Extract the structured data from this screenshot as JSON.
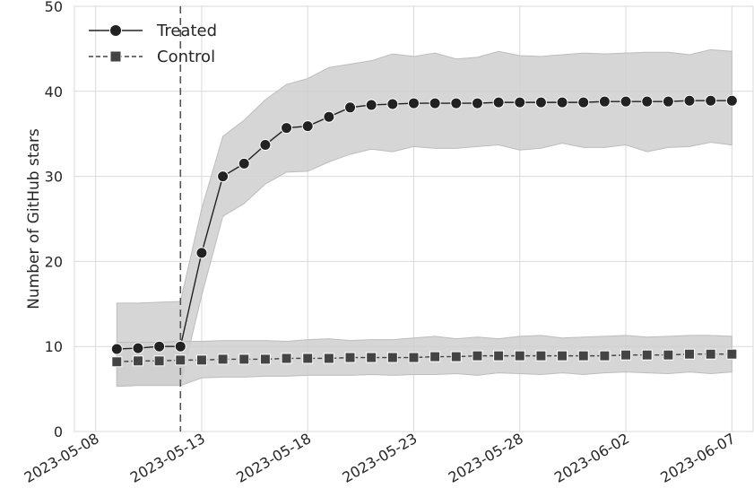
{
  "chart_data": {
    "type": "line",
    "ylabel": "Number of GitHub stars",
    "ylim": [
      0,
      50
    ],
    "yticks": [
      0,
      10,
      20,
      30,
      40,
      50
    ],
    "xlim": [
      "2023-05-07",
      "2023-06-08"
    ],
    "xticks": [
      "2023-05-08",
      "2023-05-13",
      "2023-05-18",
      "2023-05-23",
      "2023-05-28",
      "2023-06-02",
      "2023-06-07"
    ],
    "treatment_date": "2023-05-12",
    "grid": true,
    "legend_position": "top-left",
    "x": [
      "2023-05-09",
      "2023-05-10",
      "2023-05-11",
      "2023-05-12",
      "2023-05-13",
      "2023-05-14",
      "2023-05-15",
      "2023-05-16",
      "2023-05-17",
      "2023-05-18",
      "2023-05-19",
      "2023-05-20",
      "2023-05-21",
      "2023-05-22",
      "2023-05-23",
      "2023-05-24",
      "2023-05-25",
      "2023-05-26",
      "2023-05-27",
      "2023-05-28",
      "2023-05-29",
      "2023-05-30",
      "2023-05-31",
      "2023-06-01",
      "2023-06-02",
      "2023-06-03",
      "2023-06-04",
      "2023-06-05",
      "2023-06-06",
      "2023-06-07"
    ],
    "series": [
      {
        "name": "Treated",
        "marker": "circle",
        "line_style": "solid",
        "color": "#222222",
        "values": [
          9.7,
          9.8,
          10.0,
          10.0,
          21.0,
          30.0,
          31.5,
          33.7,
          35.7,
          35.9,
          37.0,
          38.1,
          38.4,
          38.5,
          38.6,
          38.6,
          38.6,
          38.6,
          38.7,
          38.7,
          38.7,
          38.7,
          38.7,
          38.8,
          38.8,
          38.8,
          38.8,
          38.9,
          38.9,
          38.9
        ],
        "ci_lower": [
          5.4,
          5.5,
          5.5,
          5.5,
          16.0,
          25.3,
          26.8,
          29.1,
          30.5,
          30.6,
          31.7,
          32.6,
          33.2,
          32.9,
          33.5,
          33.3,
          33.3,
          33.5,
          33.7,
          33.1,
          33.3,
          33.9,
          33.4,
          33.4,
          33.7,
          32.9,
          33.4,
          33.5,
          34.0,
          33.7
        ],
        "ci_upper": [
          15.1,
          15.1,
          15.2,
          15.3,
          26.2,
          34.7,
          36.6,
          39.0,
          40.8,
          41.5,
          42.8,
          43.2,
          43.6,
          44.4,
          44.1,
          44.5,
          43.8,
          44.0,
          44.7,
          44.2,
          44.1,
          44.3,
          44.5,
          44.4,
          44.5,
          44.6,
          44.6,
          44.3,
          44.9,
          44.7
        ]
      },
      {
        "name": "Control",
        "marker": "square",
        "line_style": "dashed",
        "color": "#444444",
        "values": [
          8.2,
          8.3,
          8.3,
          8.4,
          8.4,
          8.5,
          8.5,
          8.5,
          8.6,
          8.6,
          8.6,
          8.7,
          8.7,
          8.7,
          8.7,
          8.8,
          8.8,
          8.9,
          8.9,
          8.9,
          8.9,
          8.9,
          8.9,
          8.9,
          9.0,
          9.0,
          9.0,
          9.1,
          9.1,
          9.1
        ],
        "ci_lower": [
          5.3,
          5.4,
          5.4,
          5.4,
          6.3,
          6.4,
          6.4,
          6.5,
          6.5,
          6.6,
          6.6,
          6.6,
          6.7,
          6.6,
          6.7,
          6.7,
          6.8,
          6.6,
          6.9,
          6.8,
          6.7,
          6.9,
          6.7,
          6.9,
          7.0,
          6.9,
          6.8,
          7.0,
          6.8,
          7.0
        ],
        "ci_upper": [
          10.5,
          10.5,
          10.5,
          10.6,
          10.6,
          10.7,
          10.7,
          10.7,
          10.6,
          10.8,
          10.9,
          10.7,
          10.8,
          10.8,
          11.0,
          11.2,
          10.9,
          11.1,
          10.9,
          11.2,
          11.3,
          11.0,
          11.1,
          11.2,
          11.3,
          11.1,
          11.2,
          11.3,
          11.3,
          11.2
        ]
      }
    ]
  },
  "colors": {
    "grid": "#d9d9d9",
    "band": "#cfcfcf",
    "band_overlap": "#b3b3b3",
    "vline": "#555555",
    "text": "#262626"
  }
}
